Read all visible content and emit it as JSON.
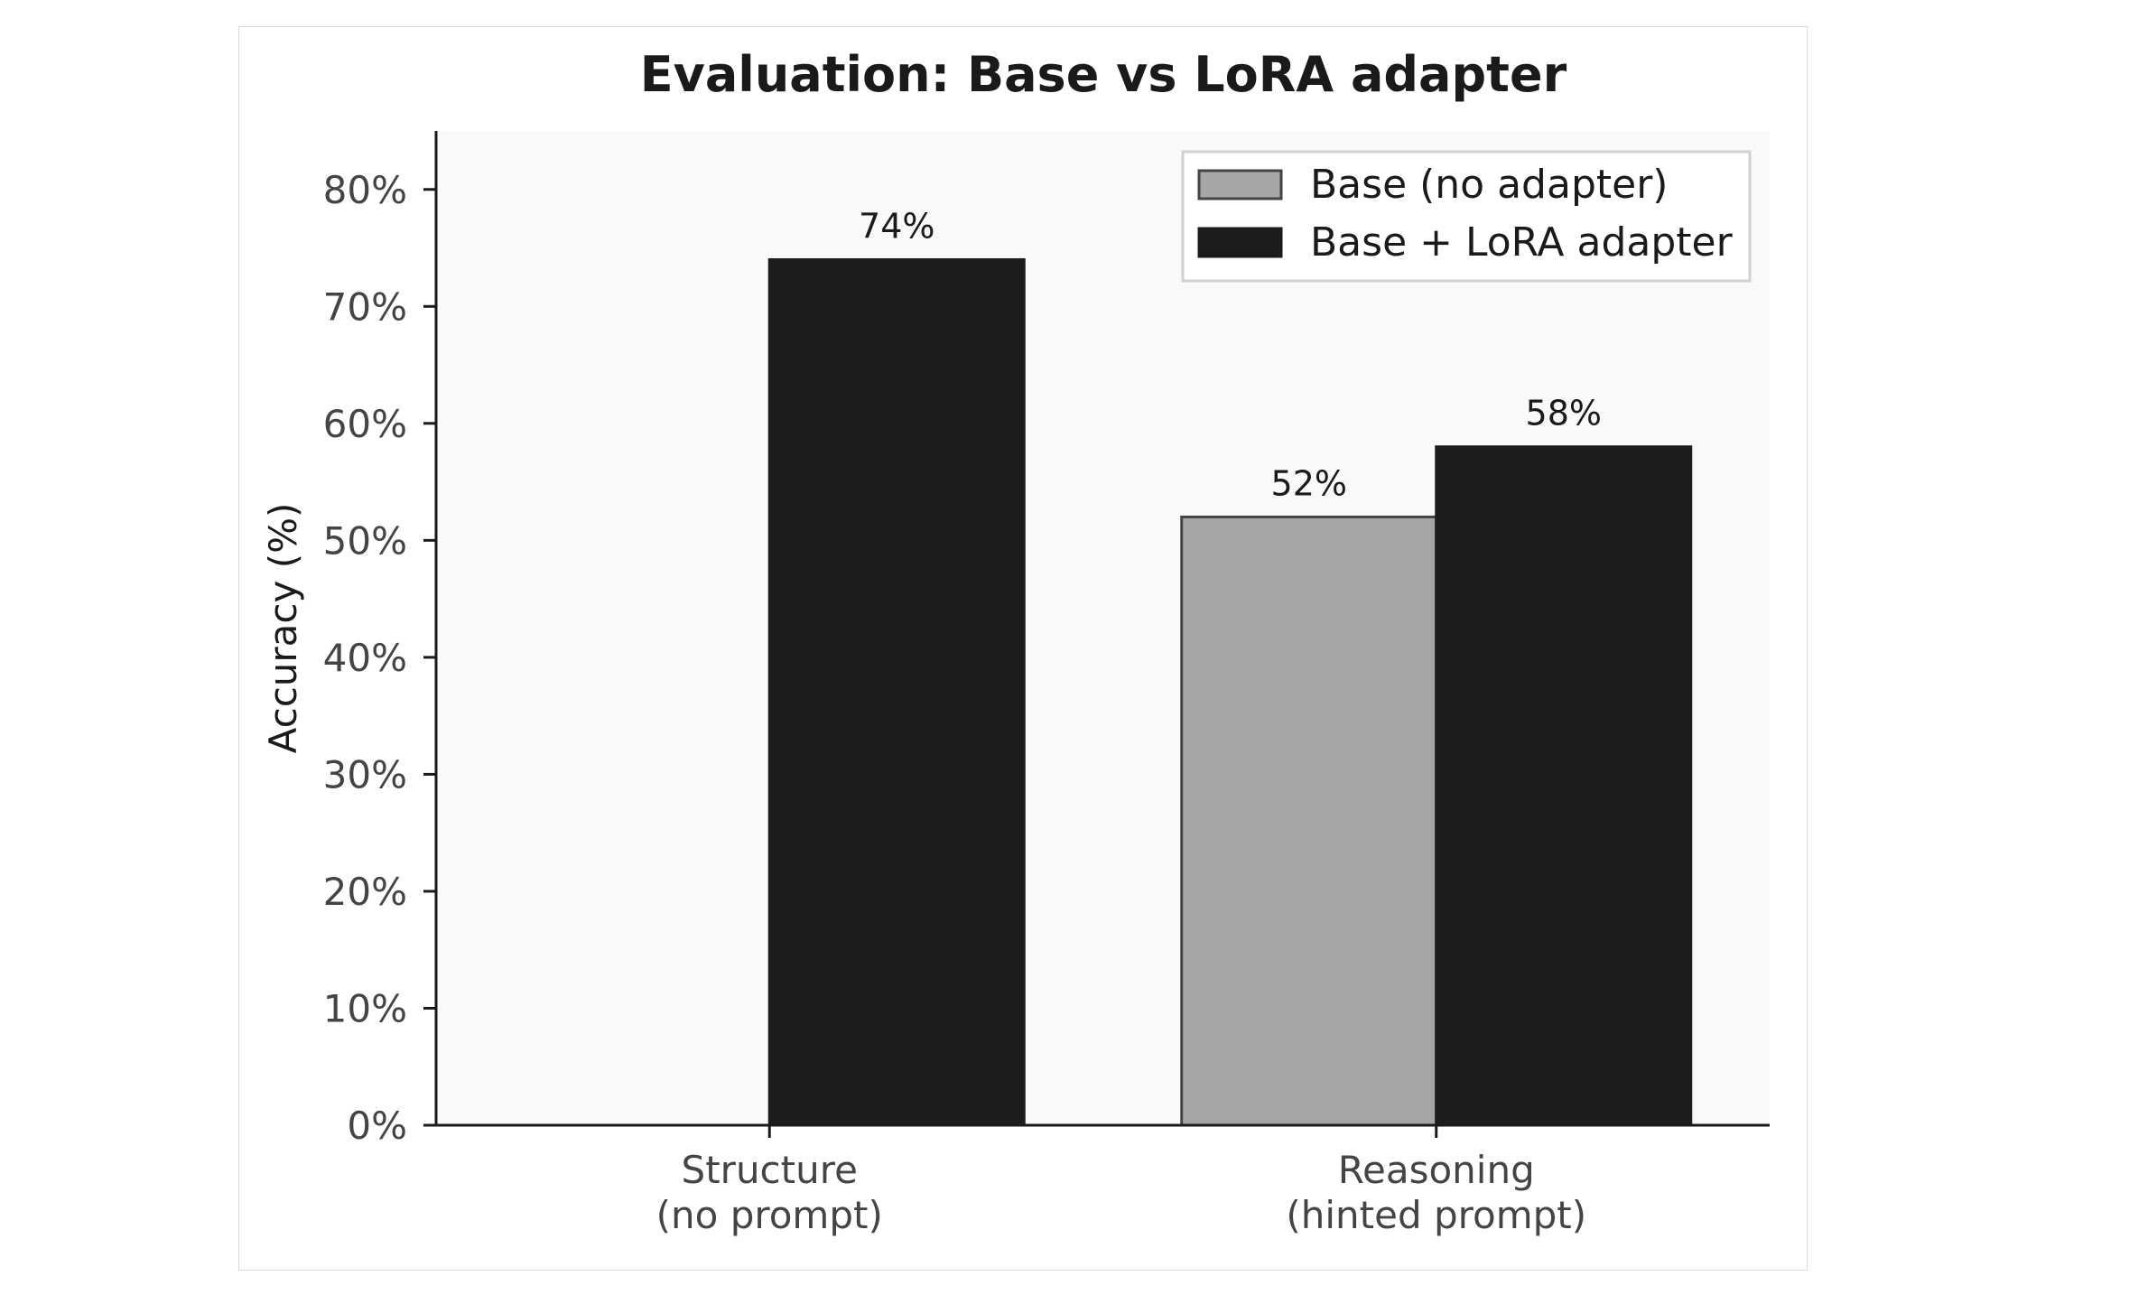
{
  "chart_data": {
    "type": "bar",
    "title": "Evaluation: Base vs LoRA adapter",
    "xlabel": "",
    "ylabel": "Accuracy (%)",
    "ylim": [
      0,
      85
    ],
    "yticks": [
      {
        "value": 0,
        "label": "0%"
      },
      {
        "value": 10,
        "label": "10%"
      },
      {
        "value": 20,
        "label": "20%"
      },
      {
        "value": 30,
        "label": "30%"
      },
      {
        "value": 40,
        "label": "40%"
      },
      {
        "value": 50,
        "label": "50%"
      },
      {
        "value": 60,
        "label": "60%"
      },
      {
        "value": 70,
        "label": "70%"
      },
      {
        "value": 80,
        "label": "80%"
      }
    ],
    "categories": [
      [
        "Structure",
        "(no prompt)"
      ],
      [
        "Reasoning",
        "(hinted prompt)"
      ]
    ],
    "series": [
      {
        "name": "Base (no adapter)",
        "color": "#a6a6a6",
        "edge": "#444444",
        "values": [
          null,
          52
        ],
        "labels": [
          "",
          "52%"
        ]
      },
      {
        "name": "Base + LoRA adapter",
        "color": "#1c1c1c",
        "edge": "#1c1c1c",
        "values": [
          74,
          58
        ],
        "labels": [
          "74%",
          "58%"
        ]
      }
    ],
    "legend": "top-right",
    "grid": false,
    "plot_background": "#f9f9f9"
  }
}
